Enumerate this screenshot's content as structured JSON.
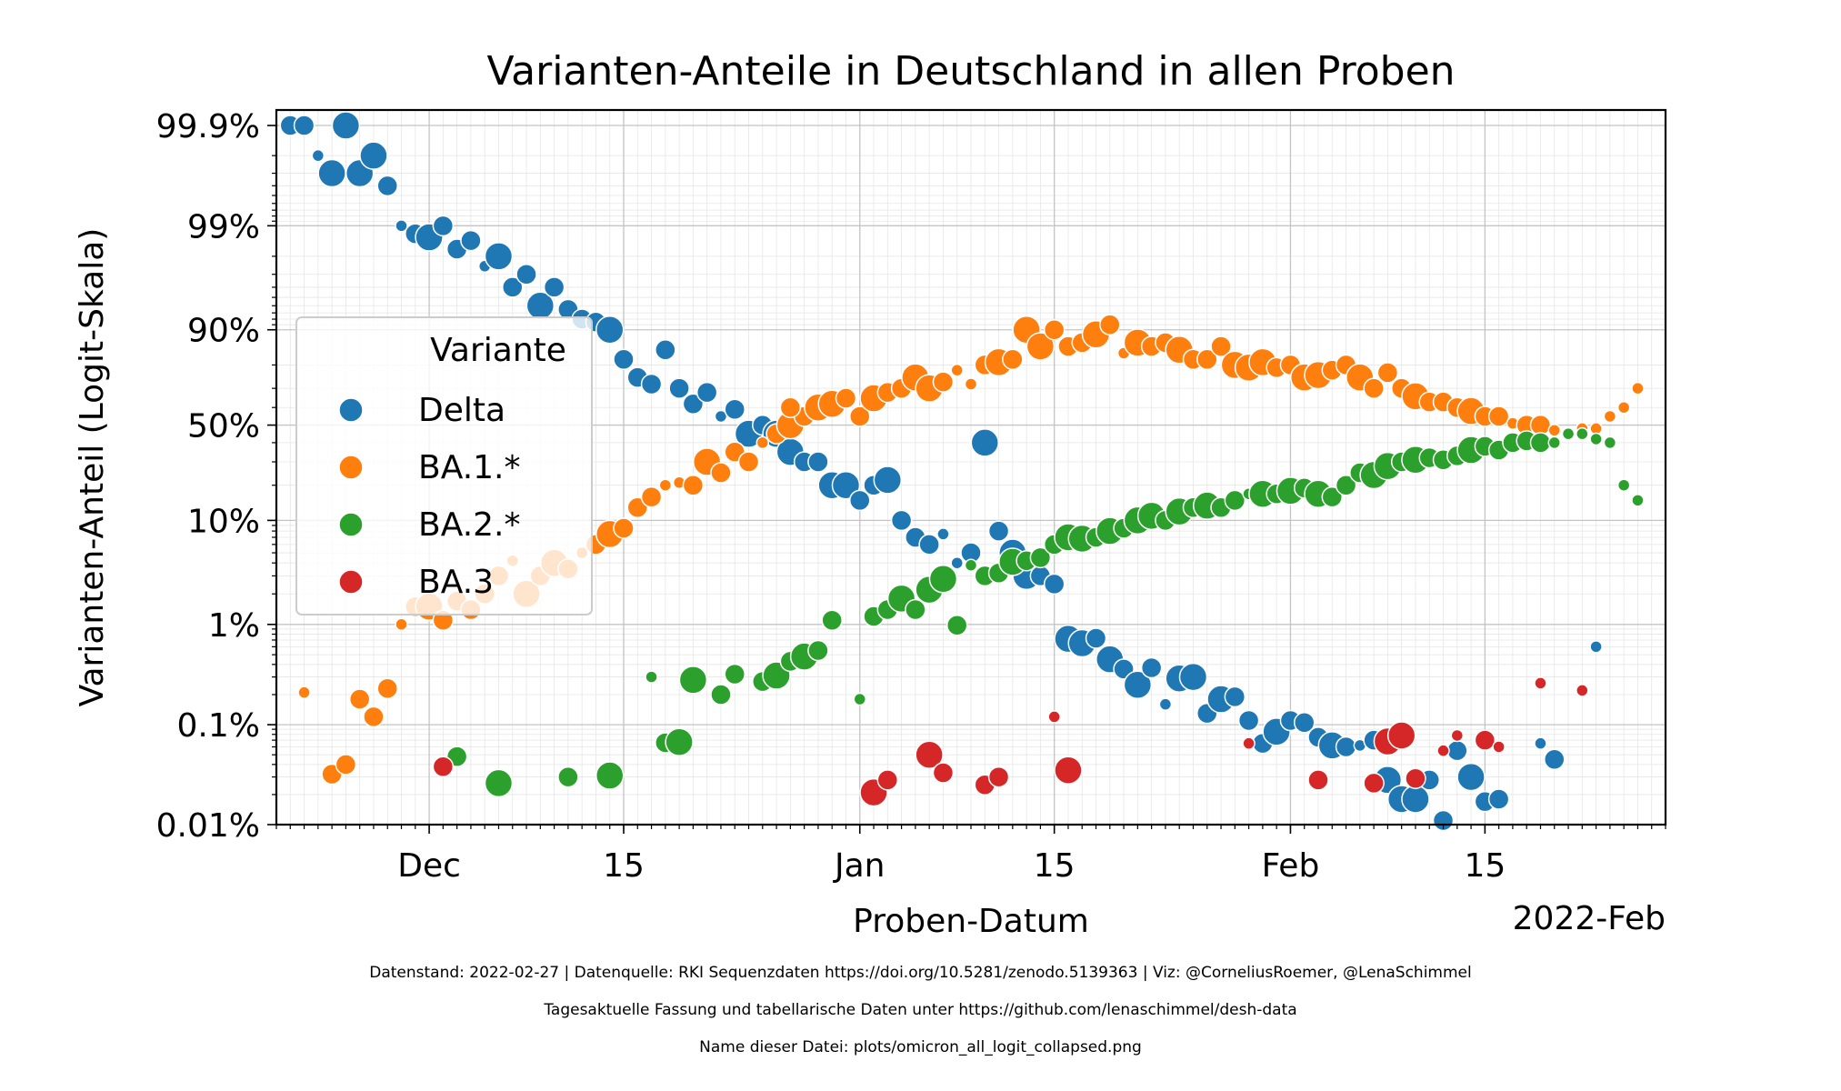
{
  "chart_data": {
    "type": "scatter",
    "title": "Varianten-Anteile in Deutschland in allen Proben",
    "xlabel": "Proben-Datum",
    "ylabel": "Varianten-Anteil (Logit-Skala)",
    "y_scale": "logit",
    "x_offset_label": "2022-Feb",
    "xlim": [
      "2021-11-20",
      "2022-02-28"
    ],
    "ylim": [
      0.0001,
      0.9993
    ],
    "grid": true,
    "x_ticks": [
      {
        "date": "2021-12-01",
        "label": "Dec"
      },
      {
        "date": "2021-12-15",
        "label": "15"
      },
      {
        "date": "2022-01-01",
        "label": "Jan"
      },
      {
        "date": "2022-01-15",
        "label": "15"
      },
      {
        "date": "2022-02-01",
        "label": "Feb"
      },
      {
        "date": "2022-02-15",
        "label": "15"
      }
    ],
    "y_ticks": [
      {
        "value": 0.0001,
        "label": "0.01%"
      },
      {
        "value": 0.001,
        "label": "0.1%"
      },
      {
        "value": 0.01,
        "label": "1%"
      },
      {
        "value": 0.1,
        "label": "10%"
      },
      {
        "value": 0.5,
        "label": "50%"
      },
      {
        "value": 0.9,
        "label": "90%"
      },
      {
        "value": 0.99,
        "label": "99%"
      },
      {
        "value": 0.999,
        "label": "99.9%"
      }
    ],
    "legend": {
      "title": "Variante",
      "placement": "center-left"
    },
    "series": [
      {
        "name": "Delta",
        "color": "#1f77b4",
        "x": [
          "2021-11-21",
          "2021-11-22",
          "2021-11-23",
          "2021-11-24",
          "2021-11-25",
          "2021-11-26",
          "2021-11-27",
          "2021-11-28",
          "2021-11-29",
          "2021-11-30",
          "2021-12-01",
          "2021-12-02",
          "2021-12-03",
          "2021-12-04",
          "2021-12-05",
          "2021-12-06",
          "2021-12-07",
          "2021-12-08",
          "2021-12-09",
          "2021-12-10",
          "2021-12-11",
          "2021-12-12",
          "2021-12-13",
          "2021-12-14",
          "2021-12-15",
          "2021-12-16",
          "2021-12-17",
          "2021-12-18",
          "2021-12-19",
          "2021-12-20",
          "2021-12-21",
          "2021-12-22",
          "2021-12-23",
          "2021-12-24",
          "2021-12-25",
          "2021-12-26",
          "2021-12-27",
          "2021-12-28",
          "2021-12-29",
          "2021-12-30",
          "2021-12-31",
          "2022-01-01",
          "2022-01-02",
          "2022-01-03",
          "2022-01-04",
          "2022-01-05",
          "2022-01-06",
          "2022-01-07",
          "2022-01-08",
          "2022-01-09",
          "2022-01-10",
          "2022-01-11",
          "2022-01-12",
          "2022-01-13",
          "2022-01-14",
          "2022-01-15",
          "2022-01-16",
          "2022-01-17",
          "2022-01-18",
          "2022-01-19",
          "2022-01-20",
          "2022-01-21",
          "2022-01-22",
          "2022-01-23",
          "2022-01-24",
          "2022-01-25",
          "2022-01-26",
          "2022-01-27",
          "2022-01-28",
          "2022-01-29",
          "2022-01-30",
          "2022-01-31",
          "2022-02-01",
          "2022-02-02",
          "2022-02-03",
          "2022-02-04",
          "2022-02-05",
          "2022-02-06",
          "2022-02-07",
          "2022-02-08",
          "2022-02-09",
          "2022-02-10",
          "2022-02-11",
          "2022-02-12",
          "2022-02-13",
          "2022-02-14",
          "2022-02-15",
          "2022-02-16",
          "2022-02-17",
          "2022-02-18",
          "2022-02-19",
          "2022-02-20",
          "2022-02-21",
          "2022-02-22",
          "2022-02-23",
          "2022-02-24",
          "2022-02-25",
          "2022-02-26"
        ],
        "values": [
          0.999,
          0.999,
          0.998,
          0.997,
          0.999,
          0.997,
          0.998,
          0.996,
          0.99,
          0.988,
          0.987,
          0.99,
          0.983,
          0.986,
          0.975,
          0.98,
          0.96,
          0.97,
          0.94,
          0.96,
          0.935,
          0.92,
          0.915,
          0.9,
          0.82,
          0.75,
          0.72,
          0.85,
          0.7,
          0.62,
          0.68,
          0.55,
          0.59,
          0.45,
          0.5,
          0.45,
          0.35,
          0.3,
          0.3,
          0.2,
          0.2,
          0.15,
          0.2,
          0.22,
          0.1,
          0.07,
          0.06,
          0.075,
          0.04,
          0.05,
          0.4,
          0.08,
          0.05,
          0.03,
          0.03,
          0.025,
          0.0072,
          0.0065,
          0.0073,
          0.0045,
          0.0036,
          0.0025,
          0.0037,
          0.0016,
          0.0029,
          0.003,
          0.0013,
          0.0018,
          0.0019,
          0.0011,
          0.00065,
          0.00085,
          0.0011,
          0.00105,
          0.00075,
          0.00062,
          0.0006,
          0.00062,
          0.0007,
          0.00028,
          0.00018,
          0.00018,
          0.00028,
          0.00011,
          0.00055,
          0.0003,
          0.00017,
          0.00018,
          null,
          null,
          0.00065,
          0.00045,
          null,
          null,
          0.006,
          null,
          null,
          null
        ],
        "sizes": [
          2,
          2,
          1,
          3,
          3,
          3,
          3,
          2,
          1,
          2,
          3,
          2,
          2,
          2,
          1,
          3,
          2,
          2,
          3,
          2,
          2,
          2,
          2,
          3,
          2,
          2,
          2,
          2,
          2,
          2,
          2,
          1,
          2,
          3,
          2,
          3,
          3,
          2,
          2,
          3,
          3,
          2,
          2,
          3,
          2,
          2,
          2,
          1,
          1,
          2,
          3,
          2,
          3,
          3,
          2,
          2,
          3,
          3,
          2,
          3,
          2,
          3,
          2,
          1,
          3,
          3,
          2,
          3,
          2,
          2,
          2,
          3,
          2,
          2,
          2,
          3,
          2,
          1,
          2,
          3,
          3,
          3,
          2,
          2,
          2,
          3,
          2,
          2,
          1,
          2,
          1,
          2,
          1,
          1,
          1,
          1,
          1,
          1
        ]
      },
      {
        "name": "BA.1.*",
        "color": "#ff7f0e",
        "x": [
          "2021-11-22",
          "2021-11-24",
          "2021-11-25",
          "2021-11-26",
          "2021-11-27",
          "2021-11-28",
          "2021-11-29",
          "2021-11-30",
          "2021-12-01",
          "2021-12-02",
          "2021-12-03",
          "2021-12-04",
          "2021-12-05",
          "2021-12-06",
          "2021-12-07",
          "2021-12-08",
          "2021-12-09",
          "2021-12-10",
          "2021-12-11",
          "2021-12-12",
          "2021-12-13",
          "2021-12-14",
          "2021-12-15",
          "2021-12-16",
          "2021-12-17",
          "2021-12-18",
          "2021-12-19",
          "2021-12-20",
          "2021-12-21",
          "2021-12-22",
          "2021-12-23",
          "2021-12-24",
          "2021-12-25",
          "2021-12-26",
          "2021-12-27",
          "2021-12-28",
          "2021-12-29",
          "2021-12-30",
          "2021-12-31",
          "2022-01-01",
          "2022-01-02",
          "2022-01-03",
          "2022-01-04",
          "2022-01-05",
          "2022-01-06",
          "2022-01-07",
          "2022-01-08",
          "2022-01-09",
          "2022-01-10",
          "2022-01-11",
          "2022-01-12",
          "2022-01-13",
          "2022-01-14",
          "2022-01-15",
          "2022-01-16",
          "2022-01-17",
          "2022-01-18",
          "2022-01-19",
          "2022-01-20",
          "2022-01-21",
          "2022-01-22",
          "2022-01-23",
          "2022-01-24",
          "2022-01-25",
          "2022-01-26",
          "2022-01-27",
          "2022-01-28",
          "2022-01-29",
          "2022-01-30",
          "2022-01-31",
          "2022-02-01",
          "2022-02-02",
          "2022-02-03",
          "2022-02-04",
          "2022-02-05",
          "2022-02-06",
          "2022-02-07",
          "2022-02-08",
          "2022-02-09",
          "2022-02-10",
          "2022-02-11",
          "2022-02-12",
          "2022-02-13",
          "2022-02-14",
          "2022-02-15",
          "2022-02-16",
          "2022-02-17",
          "2022-02-18",
          "2022-02-19",
          "2022-02-20",
          "2022-02-21",
          "2022-02-22",
          "2022-02-23",
          "2022-02-24",
          "2022-02-25",
          "2022-02-26"
        ],
        "values": [
          0.0021,
          0.00032,
          0.0004,
          0.0018,
          0.0012,
          0.0023,
          0.01,
          0.015,
          0.015,
          0.011,
          0.017,
          0.014,
          0.02,
          0.03,
          0.042,
          0.02,
          0.03,
          0.04,
          0.035,
          0.05,
          0.06,
          0.075,
          0.085,
          0.13,
          0.16,
          0.2,
          0.21,
          0.2,
          0.3,
          0.25,
          0.35,
          0.3,
          0.4,
          0.45,
          0.5,
          0.55,
          0.6,
          0.62,
          0.65,
          0.55,
          0.65,
          0.68,
          0.7,
          0.75,
          0.7,
          0.73,
          0.78,
          0.72,
          0.8,
          0.81,
          0.82,
          0.9,
          0.86,
          0.9,
          0.86,
          0.87,
          0.89,
          0.91,
          0.84,
          0.87,
          0.86,
          0.87,
          0.85,
          0.82,
          0.82,
          0.86,
          0.8,
          0.79,
          0.81,
          0.79,
          0.8,
          0.75,
          0.76,
          0.78,
          0.8,
          0.75,
          0.7,
          0.77,
          0.7,
          0.66,
          0.63,
          0.63,
          0.6,
          0.58,
          0.55,
          0.55,
          0.51,
          0.5,
          0.5,
          0.47,
          null,
          0.48,
          0.48,
          0.55,
          0.6,
          0.7
        ],
        "sizes": [
          1,
          2,
          2,
          2,
          2,
          2,
          1,
          2,
          3,
          2,
          2,
          2,
          2,
          2,
          1,
          3,
          2,
          3,
          2,
          1,
          2,
          3,
          2,
          2,
          2,
          1,
          1,
          2,
          3,
          2,
          2,
          2,
          1,
          2,
          3,
          2,
          3,
          3,
          2,
          2,
          3,
          2,
          2,
          3,
          3,
          2,
          1,
          1,
          2,
          3,
          2,
          3,
          3,
          2,
          2,
          2,
          3,
          2,
          1,
          3,
          2,
          2,
          3,
          2,
          2,
          2,
          3,
          3,
          3,
          2,
          2,
          3,
          3,
          2,
          2,
          3,
          2,
          2,
          2,
          3,
          2,
          2,
          2,
          3,
          2,
          2,
          1,
          2,
          2,
          1,
          null,
          1,
          1,
          1,
          1,
          1
        ],
        "extra": [
          {
            "x": "2021-12-27",
            "value": 0.6
          }
        ]
      },
      {
        "name": "BA.2.*",
        "color": "#2ca02c",
        "x": [
          "2021-12-03",
          "2021-12-06",
          "2021-12-11",
          "2021-12-14",
          "2021-12-17",
          "2021-12-18",
          "2021-12-19",
          "2021-12-20",
          "2021-12-22",
          "2021-12-23",
          "2021-12-25",
          "2021-12-26",
          "2021-12-27",
          "2021-12-28",
          "2021-12-29",
          "2021-12-30",
          "2022-01-01",
          "2022-01-02",
          "2022-01-03",
          "2022-01-04",
          "2022-01-05",
          "2022-01-06",
          "2022-01-07",
          "2022-01-08",
          "2022-01-09",
          "2022-01-10",
          "2022-01-11",
          "2022-01-12",
          "2022-01-13",
          "2022-01-14",
          "2022-01-15",
          "2022-01-16",
          "2022-01-17",
          "2022-01-18",
          "2022-01-19",
          "2022-01-20",
          "2022-01-21",
          "2022-01-22",
          "2022-01-23",
          "2022-01-24",
          "2022-01-25",
          "2022-01-26",
          "2022-01-27",
          "2022-01-28",
          "2022-01-29",
          "2022-01-30",
          "2022-01-31",
          "2022-02-01",
          "2022-02-02",
          "2022-02-03",
          "2022-02-04",
          "2022-02-05",
          "2022-02-06",
          "2022-02-07",
          "2022-02-08",
          "2022-02-09",
          "2022-02-10",
          "2022-02-11",
          "2022-02-12",
          "2022-02-13",
          "2022-02-14",
          "2022-02-15",
          "2022-02-16",
          "2022-02-17",
          "2022-02-18",
          "2022-02-19",
          "2022-02-20",
          "2022-02-21",
          "2022-02-22",
          "2022-02-23",
          "2022-02-24",
          "2022-02-25",
          "2022-02-26"
        ],
        "values": [
          0.00048,
          0.00026,
          0.0003,
          0.00031,
          0.003,
          0.00066,
          0.00067,
          0.0028,
          0.002,
          0.0032,
          0.0027,
          0.0031,
          0.0043,
          0.0048,
          0.0055,
          0.011,
          0.0018,
          0.012,
          0.014,
          0.018,
          0.014,
          0.022,
          0.028,
          0.0098,
          0.038,
          0.03,
          0.032,
          0.041,
          0.042,
          0.045,
          0.06,
          0.07,
          0.068,
          0.07,
          0.08,
          0.085,
          0.1,
          0.11,
          0.1,
          0.12,
          0.13,
          0.135,
          0.13,
          0.15,
          0.17,
          0.17,
          0.17,
          0.18,
          0.19,
          0.17,
          0.16,
          0.2,
          0.25,
          0.24,
          0.28,
          0.3,
          0.31,
          0.32,
          0.31,
          0.33,
          0.36,
          0.38,
          0.36,
          0.4,
          0.41,
          0.4,
          0.4,
          0.45,
          0.45,
          0.42,
          0.4,
          0.2,
          0.15
        ],
        "sizes": [
          2,
          3,
          2,
          3,
          1,
          2,
          3,
          3,
          2,
          2,
          2,
          3,
          2,
          3,
          2,
          2,
          1,
          2,
          2,
          3,
          2,
          3,
          3,
          2,
          1,
          2,
          2,
          3,
          2,
          2,
          2,
          3,
          3,
          2,
          3,
          2,
          3,
          3,
          2,
          3,
          2,
          3,
          2,
          2,
          1,
          3,
          2,
          3,
          2,
          3,
          2,
          2,
          2,
          3,
          3,
          2,
          3,
          2,
          2,
          2,
          3,
          2,
          2,
          2,
          2,
          2,
          1,
          1,
          1,
          1,
          1,
          1,
          1
        ]
      },
      {
        "name": "BA.3",
        "color": "#d62728",
        "x": [
          "2021-12-02",
          "2022-01-02",
          "2022-01-03",
          "2022-01-06",
          "2022-01-07",
          "2022-01-10",
          "2022-01-11",
          "2022-01-15",
          "2022-01-16",
          "2022-01-29",
          "2022-02-03",
          "2022-02-07",
          "2022-02-08",
          "2022-02-09",
          "2022-02-10",
          "2022-02-12",
          "2022-02-13",
          "2022-02-15",
          "2022-02-16",
          "2022-02-19",
          "2022-02-22"
        ],
        "values": [
          0.00038,
          0.00021,
          0.00028,
          0.0005,
          0.00033,
          0.00025,
          0.0003,
          0.0012,
          0.00035,
          0.00065,
          0.00028,
          0.00026,
          0.00068,
          0.00078,
          0.00029,
          0.00055,
          0.00078,
          0.0007,
          0.0006,
          0.0026,
          0.0022
        ],
        "sizes": [
          2,
          3,
          2,
          3,
          2,
          2,
          2,
          1,
          3,
          1,
          2,
          2,
          3,
          3,
          2,
          1,
          1,
          2,
          1,
          1,
          1
        ]
      }
    ]
  },
  "footer": {
    "line1": "Datenstand: 2022-02-27 | Datenquelle: RKI Sequenzdaten https://doi.org/10.5281/zenodo.5139363 | Viz: @CorneliusRoemer, @LenaSchimmel",
    "line2": "Tagesaktuelle Fassung und tabellarische Daten unter https://github.com/lenaschimmel/desh-data",
    "line3": "Name dieser Datei: plots/omicron_all_logit_collapsed.png"
  }
}
